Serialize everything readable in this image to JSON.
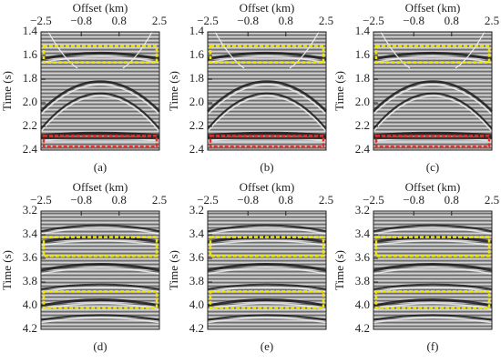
{
  "panels": [
    {
      "xlabel": "Offset (km)",
      "ylabel": "Time (s)",
      "xticks": [
        "−2.5",
        "−0.8",
        "0.8",
        "2.5"
      ],
      "yticks": [
        "1.4",
        "1.6",
        "1.8",
        "2.0",
        "2.2",
        "2.4"
      ],
      "caption": "(a)"
    },
    {
      "xlabel": "Offset (km)",
      "ylabel": "Time (s)",
      "xticks": [
        "−2.5",
        "−0.8",
        "0.8",
        "2.5"
      ],
      "yticks": [
        "1.4",
        "1.6",
        "1.8",
        "2.0",
        "2.2",
        "2.4"
      ],
      "caption": "(b)"
    },
    {
      "xlabel": "Offset (km)",
      "ylabel": "Time (s)",
      "xticks": [
        "−2.5",
        "−0.8",
        "0.8",
        "2.5"
      ],
      "yticks": [
        "1.4",
        "1.6",
        "1.8",
        "2.0",
        "2.2",
        "2.4"
      ],
      "caption": "(c)"
    },
    {
      "xlabel": "Offset (km)",
      "ylabel": "Time (s)",
      "xticks": [
        "−2.5",
        "−0.8",
        "0.8",
        "2.5"
      ],
      "yticks": [
        "3.2",
        "3.4",
        "3.6",
        "3.8",
        "4.0",
        "4.2"
      ],
      "caption": "(d)"
    },
    {
      "xlabel": "Offset (km)",
      "ylabel": "Time (s)",
      "xticks": [
        "−2.5",
        "−0.8",
        "0.8",
        "2.5"
      ],
      "yticks": [
        "3.2",
        "3.4",
        "3.6",
        "3.8",
        "4.0",
        "4.2"
      ],
      "caption": "(e)"
    },
    {
      "xlabel": "Offset (km)",
      "ylabel": "Time (s)",
      "xticks": [
        "−2.5",
        "−0.8",
        "0.8",
        "2.5"
      ],
      "yticks": [
        "3.2",
        "3.4",
        "3.6",
        "3.8",
        "4.0",
        "4.2"
      ],
      "caption": "(f)"
    }
  ]
}
